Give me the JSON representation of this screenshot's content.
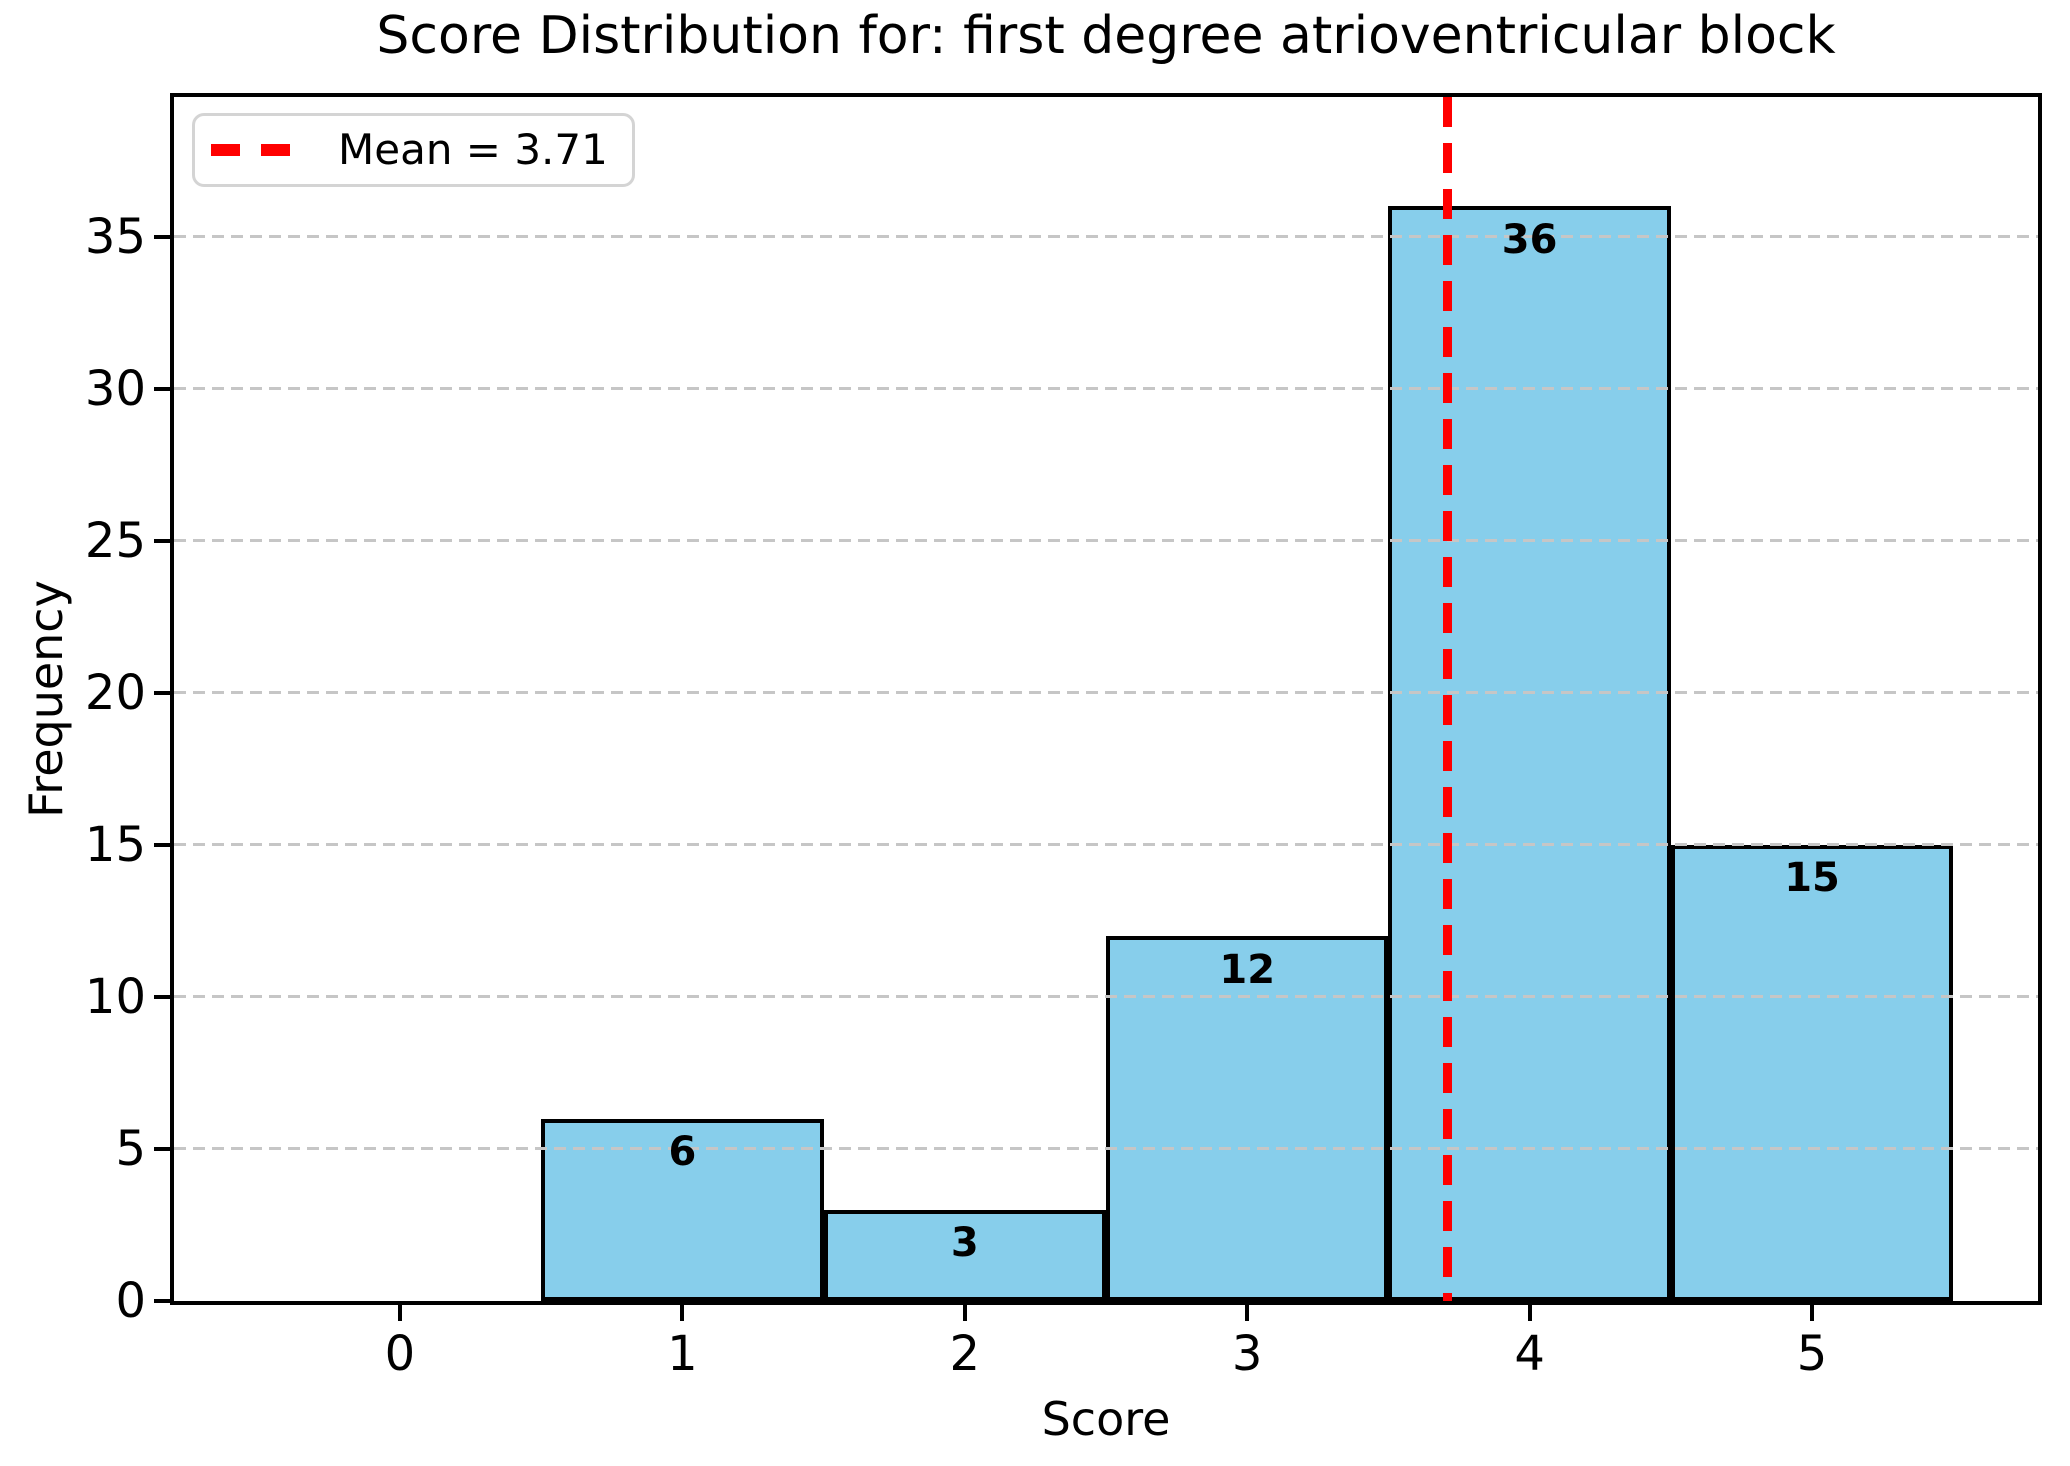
{
  "chart_data": {
    "type": "bar",
    "title": "Score Distribution for: first degree atrioventricular block",
    "xlabel": "Score",
    "ylabel": "Frequency",
    "categories": [
      0,
      1,
      2,
      3,
      4,
      5
    ],
    "values": [
      0,
      6,
      3,
      12,
      36,
      15
    ],
    "bar_width": 1.0,
    "mean": 3.71,
    "legend_label": "Mean = 3.71",
    "legend_position": "upper left",
    "xlim": [
      -0.8,
      5.8
    ],
    "ylim": [
      0,
      39.6
    ],
    "xticks": [
      0,
      1,
      2,
      3,
      4,
      5
    ],
    "yticks": [
      0,
      5,
      10,
      15,
      20,
      25,
      30,
      35
    ],
    "grid": true,
    "grid_style": "dashed",
    "colors": {
      "bar_fill": "#87CEEB",
      "bar_edge": "#000000",
      "mean_line": "#FF0000",
      "grid": "#c6c6c6",
      "legend_border": "#d4d4d4",
      "text": "#000000"
    }
  }
}
